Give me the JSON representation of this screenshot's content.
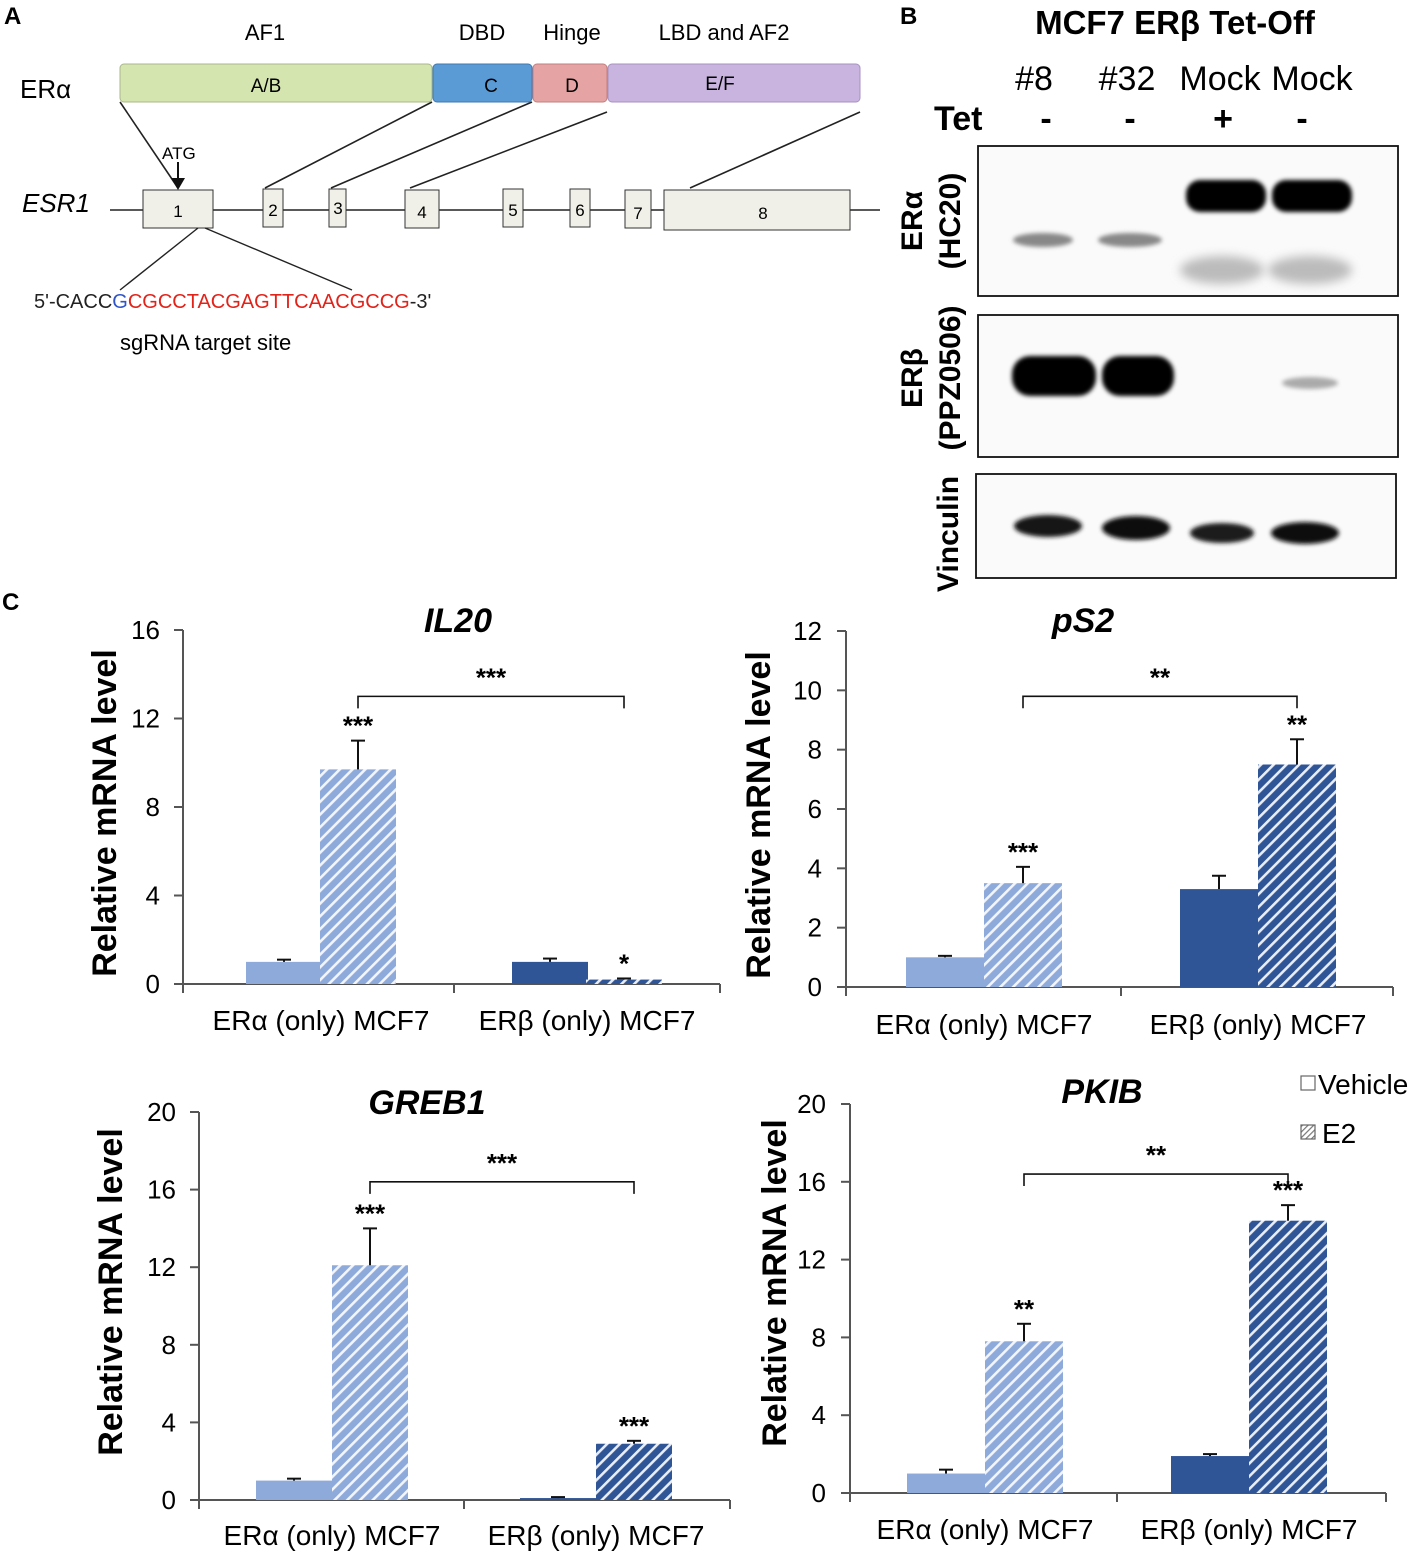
{
  "panel_labels": {
    "a": "A",
    "b": "B",
    "c": "C"
  },
  "panel_a": {
    "domain_labels": [
      "AF1",
      "DBD",
      "Hinge",
      "LBD and AF2"
    ],
    "protein_label": "ERα",
    "domains": [
      "A/B",
      "C",
      "D",
      "E/F"
    ],
    "domain_colors": [
      "#d5e5b0",
      "#5b9bd5",
      "#e6a3a3",
      "#c8b4de"
    ],
    "gene_label": "ESR1",
    "atg_label": "ATG",
    "exons": [
      "1",
      "2",
      "3",
      "4",
      "5",
      "6",
      "7",
      "8"
    ],
    "seq_prefix": "5'-CACC",
    "seq_pam": "G",
    "seq_target": "CGCCTACGAGTTCAACGCCG",
    "seq_suffix": "-3'",
    "sgrna_label": "sgRNA target site"
  },
  "panel_b": {
    "title": "MCF7 ERβ Tet-Off",
    "lanes": [
      "#8",
      "#32",
      "Mock",
      "Mock"
    ],
    "tet_label": "Tet",
    "tet_values": [
      "-",
      "-",
      "+",
      "-"
    ],
    "blots": [
      {
        "name_line1": "ERα",
        "name_line2": "(HC20)"
      },
      {
        "name_line1": "ERβ",
        "name_line2": "(PPZ0506)"
      },
      {
        "name_line1": "Vinculin",
        "name_line2": ""
      }
    ]
  },
  "legend": {
    "vehicle": "Vehicle",
    "e2": "E2"
  },
  "colors": {
    "era": "#8eaadb",
    "erb": "#2f5597",
    "axis": "#555555",
    "text": "#111111"
  },
  "chart_data": [
    {
      "type": "bar",
      "title": "IL20",
      "ylabel": "Relative mRNA level",
      "categories": [
        "ERα (only) MCF7",
        "ERβ (only) MCF7"
      ],
      "ylim": [
        0,
        16
      ],
      "yticks": [
        0,
        4,
        8,
        12,
        16
      ],
      "series": [
        {
          "name": "Vehicle",
          "values": [
            1.0,
            1.0
          ],
          "errors": [
            0.1,
            0.15
          ]
        },
        {
          "name": "E2",
          "values": [
            9.7,
            0.2
          ],
          "errors": [
            1.3,
            0.05
          ]
        }
      ],
      "sig": [
        "***",
        "*"
      ],
      "bracket": {
        "label": "***",
        "y": 13
      }
    },
    {
      "type": "bar",
      "title": "pS2",
      "ylabel": "Relative mRNA level",
      "categories": [
        "ERα (only) MCF7",
        "ERβ (only) MCF7"
      ],
      "ylim": [
        0,
        12
      ],
      "yticks": [
        0,
        2,
        4,
        6,
        8,
        10,
        12
      ],
      "series": [
        {
          "name": "Vehicle",
          "values": [
            1.0,
            3.3
          ],
          "errors": [
            0.05,
            0.45
          ]
        },
        {
          "name": "E2",
          "values": [
            3.5,
            7.5
          ],
          "errors": [
            0.55,
            0.85
          ]
        }
      ],
      "sig": [
        "***",
        "**"
      ],
      "bracket": {
        "label": "**",
        "y": 9.8
      }
    },
    {
      "type": "bar",
      "title": "GREB1",
      "ylabel": "Relative mRNA level",
      "categories": [
        "ERα (only) MCF7",
        "ERβ (only) MCF7"
      ],
      "ylim": [
        0,
        20
      ],
      "yticks": [
        0,
        4,
        8,
        12,
        16,
        20
      ],
      "series": [
        {
          "name": "Vehicle",
          "values": [
            1.0,
            0.1
          ],
          "errors": [
            0.1,
            0.05
          ]
        },
        {
          "name": "E2",
          "values": [
            12.1,
            2.9
          ],
          "errors": [
            1.9,
            0.15
          ]
        }
      ],
      "sig": [
        "***",
        "***"
      ],
      "bracket": {
        "label": "***",
        "y": 16.4
      }
    },
    {
      "type": "bar",
      "title": "PKIB",
      "ylabel": "Relative mRNA level",
      "categories": [
        "ERα (only) MCF7",
        "ERβ (only) MCF7"
      ],
      "ylim": [
        0,
        20
      ],
      "yticks": [
        0,
        4,
        8,
        12,
        16,
        20
      ],
      "series": [
        {
          "name": "Vehicle",
          "values": [
            1.0,
            1.9
          ],
          "errors": [
            0.2,
            0.1
          ]
        },
        {
          "name": "E2",
          "values": [
            7.8,
            14.0
          ],
          "errors": [
            0.9,
            0.8
          ]
        }
      ],
      "sig": [
        "**",
        "***"
      ],
      "bracket": {
        "label": "**",
        "y": 16.4
      }
    }
  ]
}
